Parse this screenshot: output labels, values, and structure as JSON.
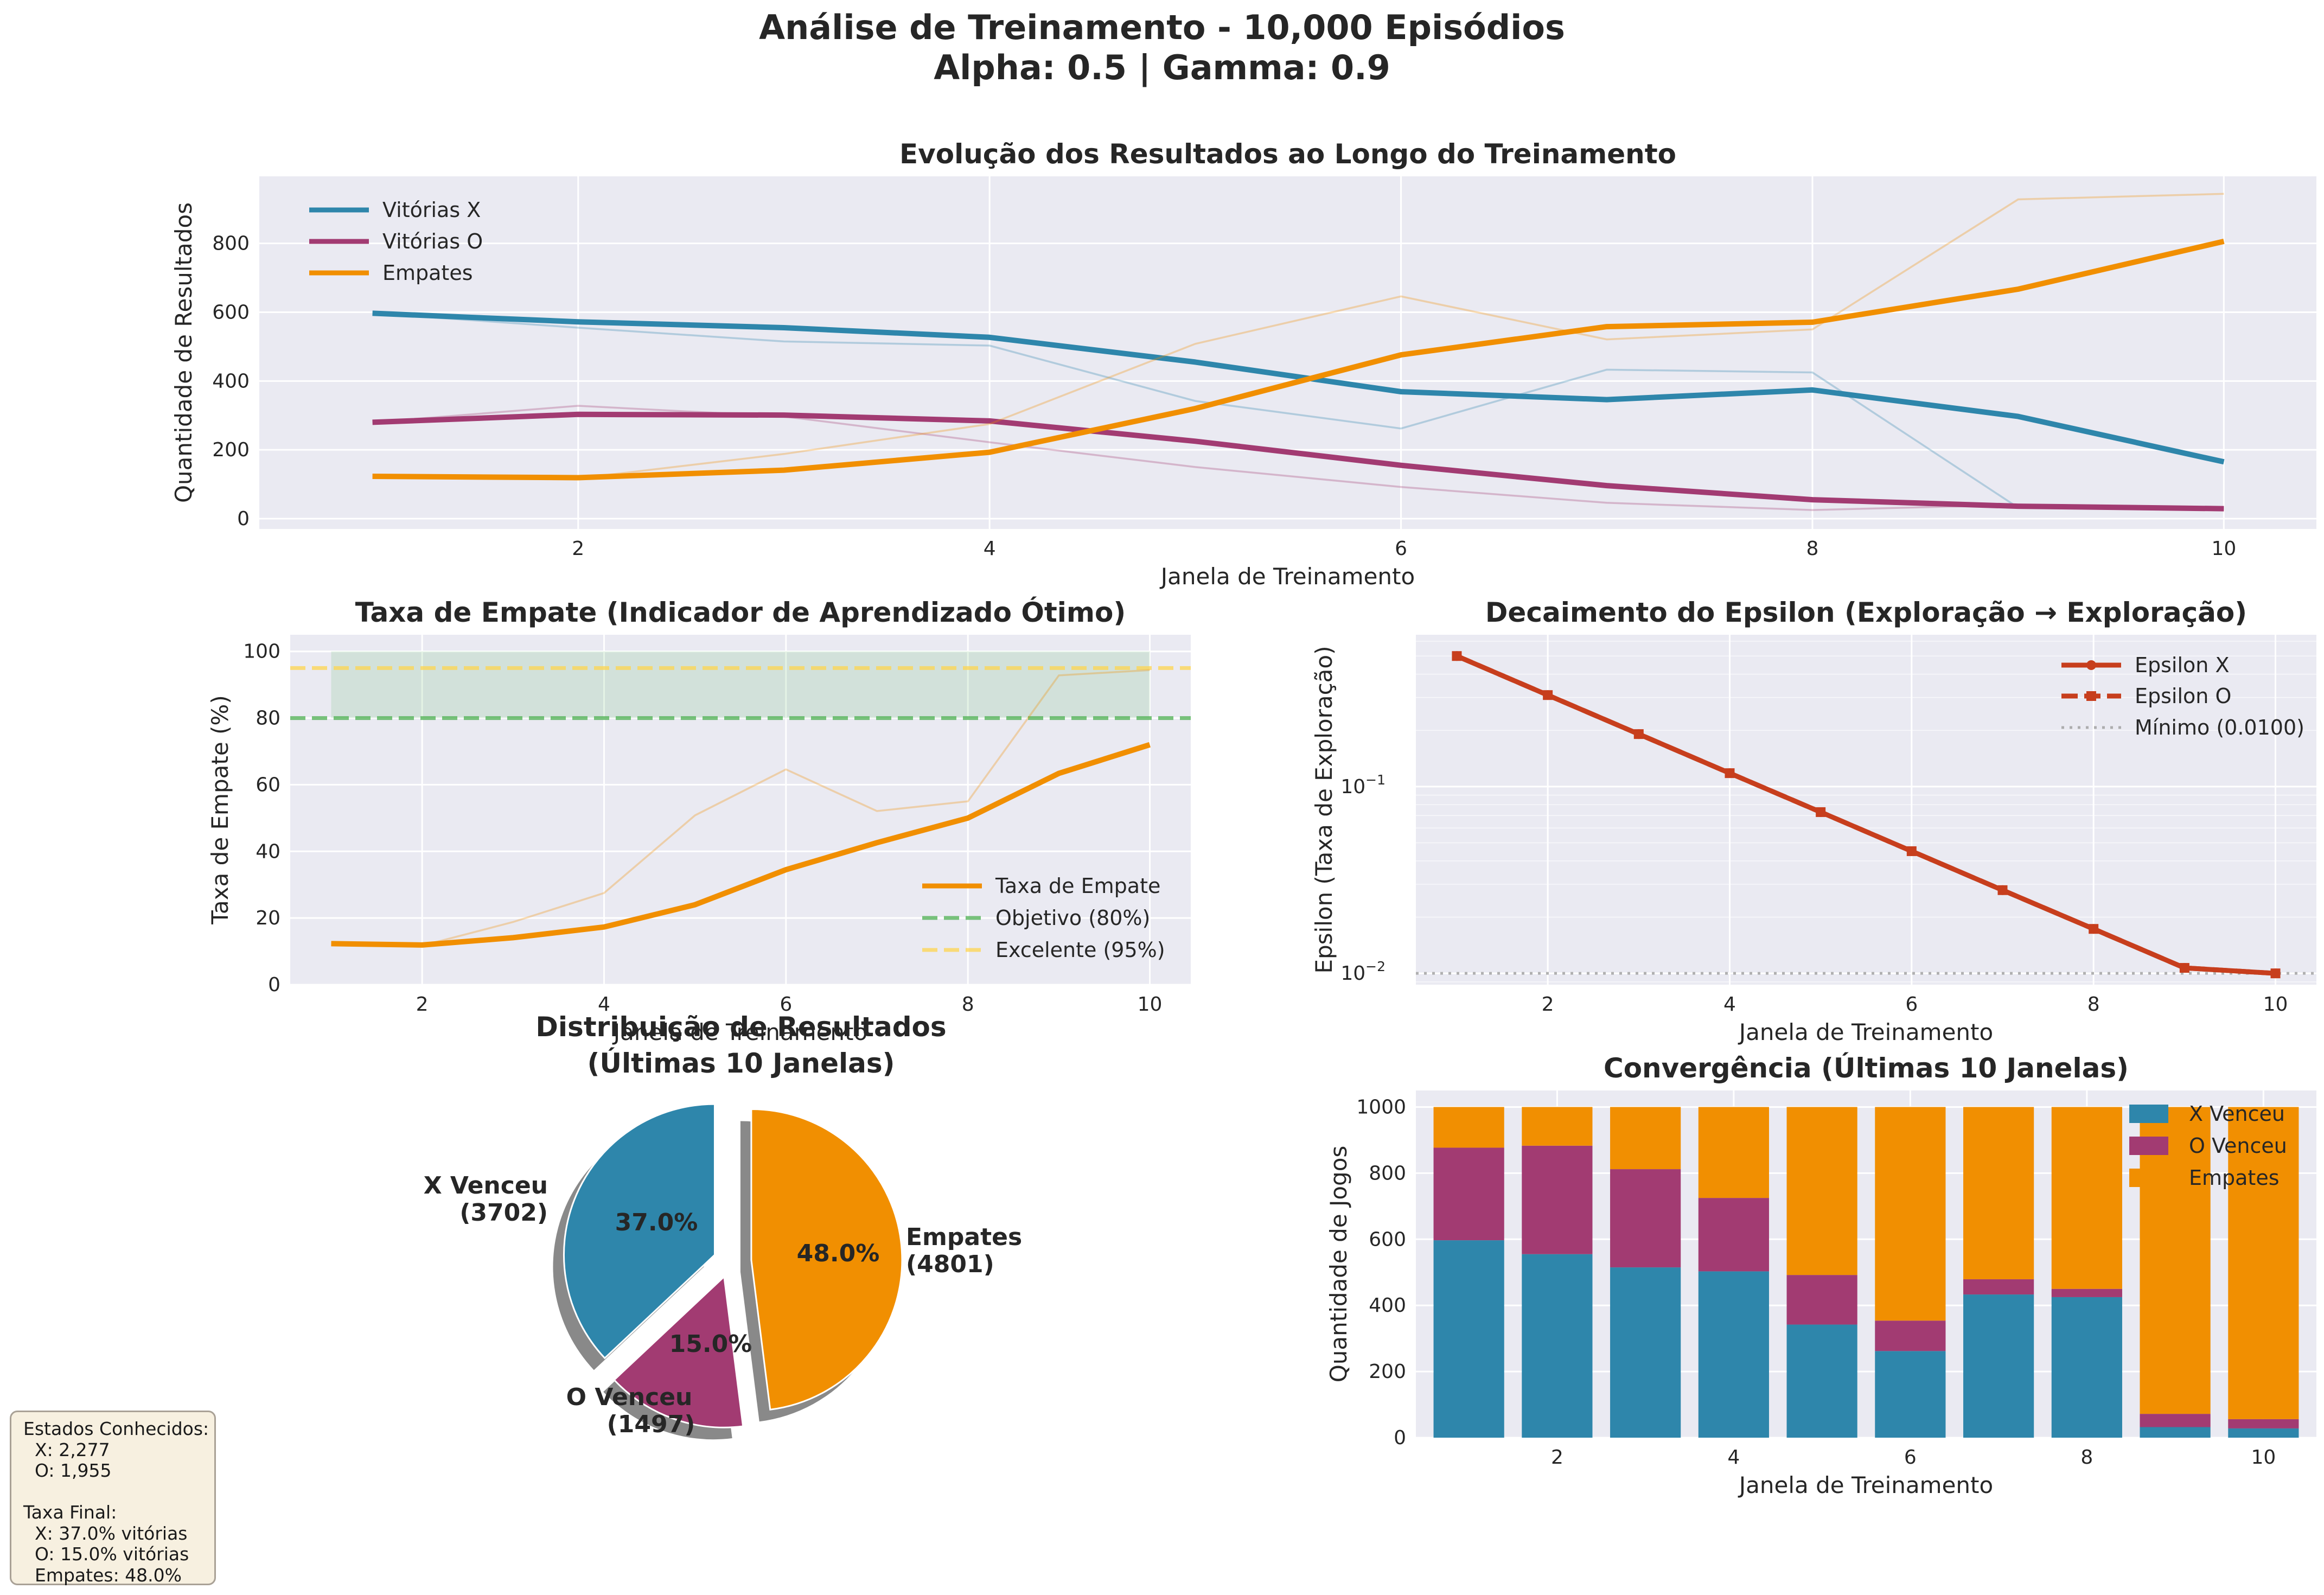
{
  "figure": {
    "title_line1": "Análise de Treinamento - 10,000 Episódios",
    "title_line2": "Alpha: 0.5 | Gamma: 0.9"
  },
  "colors": {
    "x": "#2e86ab",
    "o": "#a23b72",
    "draw": "#f18f01",
    "epsilon": "#c73e1d",
    "panel_bg": "#eaeaf2",
    "target": "#4caf50",
    "excellent": "#ffd54f"
  },
  "stats_box": {
    "lines": [
      "Estados Conhecidos:",
      "  X: 2,277",
      "  O: 1,955",
      "",
      "Taxa Final:",
      "  X: 37.0% vitórias",
      "  O: 15.0% vitórias",
      "  Empates: 48.0%"
    ]
  },
  "chart_data": [
    {
      "id": "evolution",
      "type": "line",
      "title": "Evolução dos Resultados ao Longo do Treinamento",
      "xlabel": "Janela de Treinamento",
      "ylabel": "Quantidade de Resultados",
      "x": [
        1,
        2,
        3,
        4,
        5,
        6,
        7,
        8,
        9,
        10
      ],
      "xticks": [
        2,
        4,
        6,
        8,
        10
      ],
      "yticks": [
        0,
        200,
        400,
        600,
        800
      ],
      "xlim": [
        0.45,
        10.45
      ],
      "ylim": [
        -30,
        995
      ],
      "legend_position": "upper left",
      "series": [
        {
          "name": "Vitórias X",
          "color_key": "x",
          "smoothed": [
            597,
            572,
            555,
            527,
            455,
            369,
            346,
            374,
            297,
            165
          ],
          "raw": [
            597,
            555,
            515,
            503,
            342,
            262,
            433,
            425,
            32,
            28
          ]
        },
        {
          "name": "Vitórias O",
          "color_key": "o",
          "smoothed": [
            280,
            303,
            301,
            284,
            225,
            155,
            96,
            55,
            36,
            29
          ],
          "raw": [
            280,
            328,
            297,
            222,
            150,
            92,
            46,
            25,
            40,
            28
          ]
        },
        {
          "name": "Empates",
          "color_key": "draw",
          "smoothed": [
            123,
            119,
            141,
            193,
            320,
            476,
            558,
            571,
            667,
            806
          ],
          "raw": [
            123,
            117,
            188,
            275,
            508,
            646,
            521,
            550,
            928,
            944
          ]
        }
      ]
    },
    {
      "id": "draw_rate",
      "type": "line",
      "title": "Taxa de Empate (Indicador de Aprendizado Ótimo)",
      "xlabel": "Janela de Treinamento",
      "ylabel": "Taxa de Empate (%)",
      "x": [
        1,
        2,
        3,
        4,
        5,
        6,
        7,
        8,
        9,
        10
      ],
      "xticks": [
        2,
        4,
        6,
        8,
        10
      ],
      "yticks": [
        0,
        20,
        40,
        60,
        80,
        100
      ],
      "xlim": [
        0.55,
        10.45
      ],
      "ylim": [
        0,
        105
      ],
      "legend_position": "lower right",
      "band": [
        80,
        100
      ],
      "series": [
        {
          "name": "Taxa de Empate",
          "color_key": "draw",
          "smoothed": [
            12.3,
            11.9,
            14.1,
            17.3,
            24.0,
            34.5,
            42.6,
            50.0,
            63.4,
            72.0
          ],
          "raw": [
            12.3,
            11.7,
            18.8,
            27.5,
            50.8,
            64.6,
            52.1,
            55.0,
            92.8,
            94.4
          ]
        }
      ],
      "hlines": [
        {
          "name": "Objetivo (80%)",
          "value": 80,
          "color_key": "target"
        },
        {
          "name": "Excelente (95%)",
          "value": 95,
          "color_key": "excellent"
        }
      ]
    },
    {
      "id": "epsilon",
      "type": "line",
      "title": "Decaimento do Epsilon (Exploração → Exploração)",
      "xlabel": "Janela de Treinamento",
      "ylabel": "Epsilon (Taxa de Exploração)",
      "scale_y": "log",
      "x": [
        1,
        2,
        3,
        4,
        5,
        6,
        7,
        8,
        9,
        10
      ],
      "xticks": [
        2,
        4,
        6,
        8,
        10
      ],
      "yticks": [
        0.01,
        0.1
      ],
      "ytick_labels": [
        {
          "base": "10",
          "exp": "−2"
        },
        {
          "base": "10",
          "exp": "−1"
        }
      ],
      "xlim": [
        0.55,
        10.45
      ],
      "ylim": [
        0.0087,
        0.65
      ],
      "legend_position": "upper right",
      "series": [
        {
          "name": "Epsilon X",
          "color_key": "epsilon",
          "marker": "circle",
          "values": [
            0.5,
            0.309,
            0.191,
            0.118,
            0.073,
            0.0451,
            0.0279,
            0.0173,
            0.0107,
            0.01
          ]
        },
        {
          "name": "Epsilon O",
          "color_key": "epsilon",
          "marker": "square",
          "values": [
            0.5,
            0.309,
            0.191,
            0.118,
            0.073,
            0.0451,
            0.0279,
            0.0173,
            0.0107,
            0.01
          ]
        }
      ],
      "hlines": [
        {
          "name": "Mínimo (0.0100)",
          "value": 0.01
        }
      ]
    },
    {
      "id": "distribution",
      "type": "pie",
      "title_line1": "Distribuição de Resultados",
      "title_line2": "(Últimas 10 Janelas)",
      "slices": [
        {
          "label": "X Venceu",
          "count": 3702,
          "count_label": "(3702)",
          "percent": 37.0,
          "pct_label": "37.0%",
          "color_key": "x"
        },
        {
          "label": "O Venceu",
          "count": 1497,
          "count_label": "(1497)",
          "percent": 15.0,
          "pct_label": "15.0%",
          "color_key": "o"
        },
        {
          "label": "Empates",
          "count": 4801,
          "count_label": "(4801)",
          "percent": 48.0,
          "pct_label": "48.0%",
          "color_key": "draw"
        }
      ]
    },
    {
      "id": "convergence",
      "type": "bar",
      "stacked": true,
      "title": "Convergência (Últimas 10 Janelas)",
      "xlabel": "Janela de Treinamento",
      "ylabel": "Quantidade de Jogos",
      "x": [
        1,
        2,
        3,
        4,
        5,
        6,
        7,
        8,
        9,
        10
      ],
      "xticks": [
        2,
        4,
        6,
        8,
        10
      ],
      "yticks": [
        0,
        200,
        400,
        600,
        800,
        1000
      ],
      "xlim": [
        0.4,
        10.6
      ],
      "ylim": [
        0,
        1050
      ],
      "legend_position": "upper right",
      "series": [
        {
          "name": "X Venceu",
          "color_key": "x",
          "values": [
            597,
            555,
            515,
            503,
            342,
            262,
            433,
            425,
            32,
            28
          ]
        },
        {
          "name": "O Venceu",
          "color_key": "o",
          "values": [
            280,
            328,
            297,
            222,
            150,
            92,
            46,
            25,
            40,
            28
          ]
        },
        {
          "name": "Empates",
          "color_key": "draw",
          "values": [
            123,
            117,
            188,
            275,
            508,
            646,
            521,
            550,
            928,
            944
          ]
        }
      ]
    }
  ]
}
